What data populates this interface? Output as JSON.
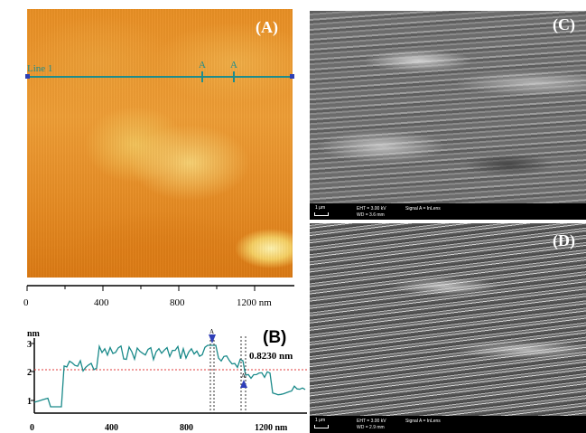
{
  "panel_a": {
    "letter": "(A)",
    "line_label": "Line 1",
    "marker1": "A",
    "marker2": "A",
    "x_ticks": [
      "0",
      "400",
      "800",
      "1200 nm"
    ]
  },
  "panel_b": {
    "letter": "(B)",
    "y_unit": "nm",
    "y_ticks": [
      "3",
      "2",
      "1"
    ],
    "x_ticks": [
      "0",
      "400",
      "800",
      "1200 nm"
    ],
    "annotation": "0.8230 nm",
    "marker_label": "A",
    "colors": {
      "profile": "#1a8a8a",
      "reference": "#e23b3b",
      "marker": "#2f3fb8"
    }
  },
  "panel_c": {
    "letter": "(C)",
    "scale": "1 μm",
    "eht": "EHT = 3.00 kV",
    "wd": "WD = 3.6 mm",
    "signal": "Signal A = InLens"
  },
  "panel_d": {
    "letter": "(D)",
    "scale": "1 μm",
    "eht": "EHT = 3.00 kV",
    "wd": "WD = 2.9 mm",
    "signal": "Signal A = InLens"
  }
}
